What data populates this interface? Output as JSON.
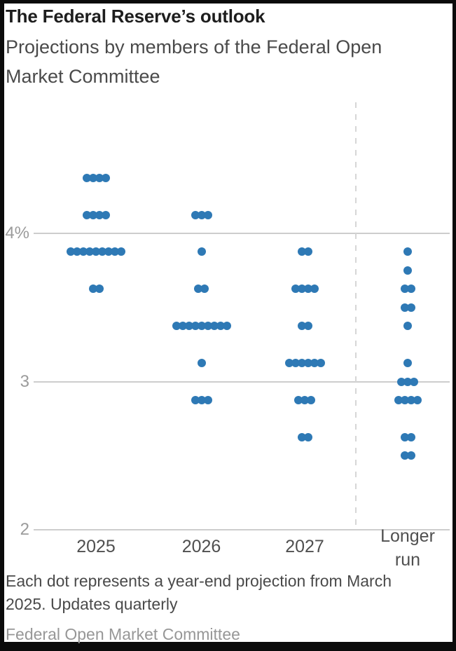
{
  "header": {
    "title": "The Federal Reserve’s outlook",
    "subtitle": "Projections by members of the Federal Open\nMarket Committee"
  },
  "chart_data": {
    "type": "scatter",
    "title": "The Federal Reserve’s outlook",
    "subtitle": "Projections by members of the Federal Open Market Committee",
    "unit": "percent",
    "ylim": [
      2,
      4.5
    ],
    "grid": true,
    "dot_color": "#2e79b5",
    "grid_color": "#cdcdcd",
    "separator_color": "#d6d6d6",
    "gridlines": [
      {
        "value": 4,
        "label": "4%"
      },
      {
        "value": 3,
        "label": "3"
      },
      {
        "value": 2,
        "label": "2"
      }
    ],
    "separator": {
      "style": "dashed",
      "position": "before Longer run column"
    },
    "columns": [
      {
        "label": "2025",
        "rows": [
          {
            "value": 4.375,
            "count": 4
          },
          {
            "value": 4.125,
            "count": 4
          },
          {
            "value": 3.875,
            "count": 9
          },
          {
            "value": 3.625,
            "count": 2
          }
        ]
      },
      {
        "label": "2026",
        "rows": [
          {
            "value": 4.125,
            "count": 3
          },
          {
            "value": 3.875,
            "count": 1
          },
          {
            "value": 3.625,
            "count": 2
          },
          {
            "value": 3.375,
            "count": 9
          },
          {
            "value": 3.125,
            "count": 1
          },
          {
            "value": 2.875,
            "count": 3
          }
        ]
      },
      {
        "label": "2027",
        "rows": [
          {
            "value": 3.875,
            "count": 2
          },
          {
            "value": 3.625,
            "count": 4
          },
          {
            "value": 3.375,
            "count": 2
          },
          {
            "value": 3.125,
            "count": 6
          },
          {
            "value": 2.875,
            "count": 3
          },
          {
            "value": 2.625,
            "count": 2
          }
        ]
      },
      {
        "label": "Longer\nrun",
        "rows": [
          {
            "value": 3.875,
            "count": 1
          },
          {
            "value": 3.75,
            "count": 1
          },
          {
            "value": 3.625,
            "count": 2
          },
          {
            "value": 3.5,
            "count": 2
          },
          {
            "value": 3.375,
            "count": 1
          },
          {
            "value": 3.125,
            "count": 1
          },
          {
            "value": 3.0,
            "count": 3
          },
          {
            "value": 2.875,
            "count": 4
          },
          {
            "value": 2.625,
            "count": 2
          },
          {
            "value": 2.5,
            "count": 2
          }
        ]
      }
    ]
  },
  "footer": {
    "note": "Each dot represents a year-end projection from March\n2025. Updates quarterly",
    "source": "Federal Open Market Committee"
  }
}
